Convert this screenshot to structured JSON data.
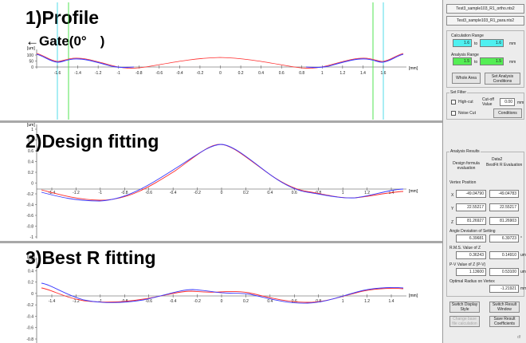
{
  "profile": {
    "title": "1)Profile",
    "gate_label": "←Gate(0°　)",
    "unit_y": "[um]",
    "unit_x": "[mm]",
    "y_ticks": [
      "100",
      "50",
      "0"
    ],
    "x_ticks": [
      "-1.6",
      "-1.4",
      "-1.2",
      "-1",
      "-0.8",
      "-0.6",
      "-0.4",
      "-0.2",
      "0",
      "0.2",
      "0.4",
      "0.6",
      "0.8",
      "1",
      "1.2",
      "1.4",
      "1.6"
    ]
  },
  "design": {
    "title": "2)Design fitting",
    "unit_y": "[um]",
    "unit_x": "[mm]",
    "y_ticks": [
      "1",
      "0.8",
      "0.6",
      "0.4",
      "0.2",
      "0",
      "-0.2",
      "-0.4",
      "-0.6",
      "-0.8",
      "-1"
    ],
    "x_ticks": [
      "-1.4",
      "-1.2",
      "-1",
      "-0.8",
      "-0.6",
      "-0.4",
      "-0.2",
      "0",
      "0.2",
      "0.4",
      "0.6",
      "0.8",
      "1",
      "1.2",
      "1.4"
    ]
  },
  "bestr": {
    "title": "3)Best R fitting",
    "unit_y": "[um]",
    "unit_x": "[mm]",
    "y_ticks": [
      "0.6",
      "0.4",
      "0.2",
      "0",
      "-0.2",
      "-0.4",
      "-0.6",
      "-0.8"
    ],
    "x_ticks": [
      "-1.4",
      "-1.2",
      "-1",
      "-0.8",
      "-0.6",
      "-0.4",
      "-0.2",
      "0",
      "0.2",
      "0.4",
      "0.6",
      "0.8",
      "1",
      "1.2",
      "1.4"
    ]
  },
  "colors": {
    "series_red": "#ff2a2a",
    "series_blue": "#3a3aff",
    "gate_cyan": "#40d8e8",
    "gate_green": "#40e040"
  },
  "side": {
    "file1": "Test3_sample103_R1_ortho.nts2",
    "file2": "Test3_sample103_R1_para.nts2",
    "calc_range": {
      "label": "Calculation Range",
      "from": "1.6",
      "to_word": "to",
      "to": "1.6",
      "unit": "mm"
    },
    "analysis_range": {
      "label": "Analysis Range",
      "from": "1.5",
      "to_word": "to",
      "to": "1.5",
      "unit": "mm"
    },
    "whole_area": "Whole Area",
    "set_analysis": "Set Analysis Conditions",
    "filter": {
      "label": "Set Filter",
      "high_cut": "High-cut",
      "cutoff": "Cut-off Value",
      "cutoff_value": "0.00",
      "unit": "mm",
      "noise_cut": "Noise Cut",
      "conditions": "Conditions"
    },
    "results": {
      "label": "Analysis Results",
      "data_label": "Data2",
      "col1": "Design formula evaluation",
      "col2": "BestFit R Evaluation",
      "vertex_label": "Vertex Position",
      "x_label": "X",
      "x1": "-49.04790",
      "x2": "-49.04783",
      "y_label": "Y",
      "y1": "22.55217",
      "y2": "22.55217",
      "z_label": "Z",
      "z1": "81.26927",
      "z2": "81.26903",
      "angle_label": "Angle Deviation of Setting",
      "angle1": "6.39681",
      "angle2": "6.39723",
      "angle_unit": "°",
      "rms_label": "R.M.S. Value of Z",
      "rms1": "0.36243",
      "rms2": "0.14910",
      "rms_unit": "um",
      "pv_label": "P-V Value of Z (P-V)",
      "pv1": "1.13600",
      "pv2": "0.53100",
      "pv_unit": "um",
      "radius_label": "Optimal Radius on Vertex",
      "radius": "-1.21921",
      "radius_unit": "mm"
    },
    "switch_display": "Switch Display Style",
    "switch_result": "Switch Result Window",
    "change_base": "Change base file calculation",
    "save_result": "Save Result Coefficients",
    "footer": "df"
  }
}
